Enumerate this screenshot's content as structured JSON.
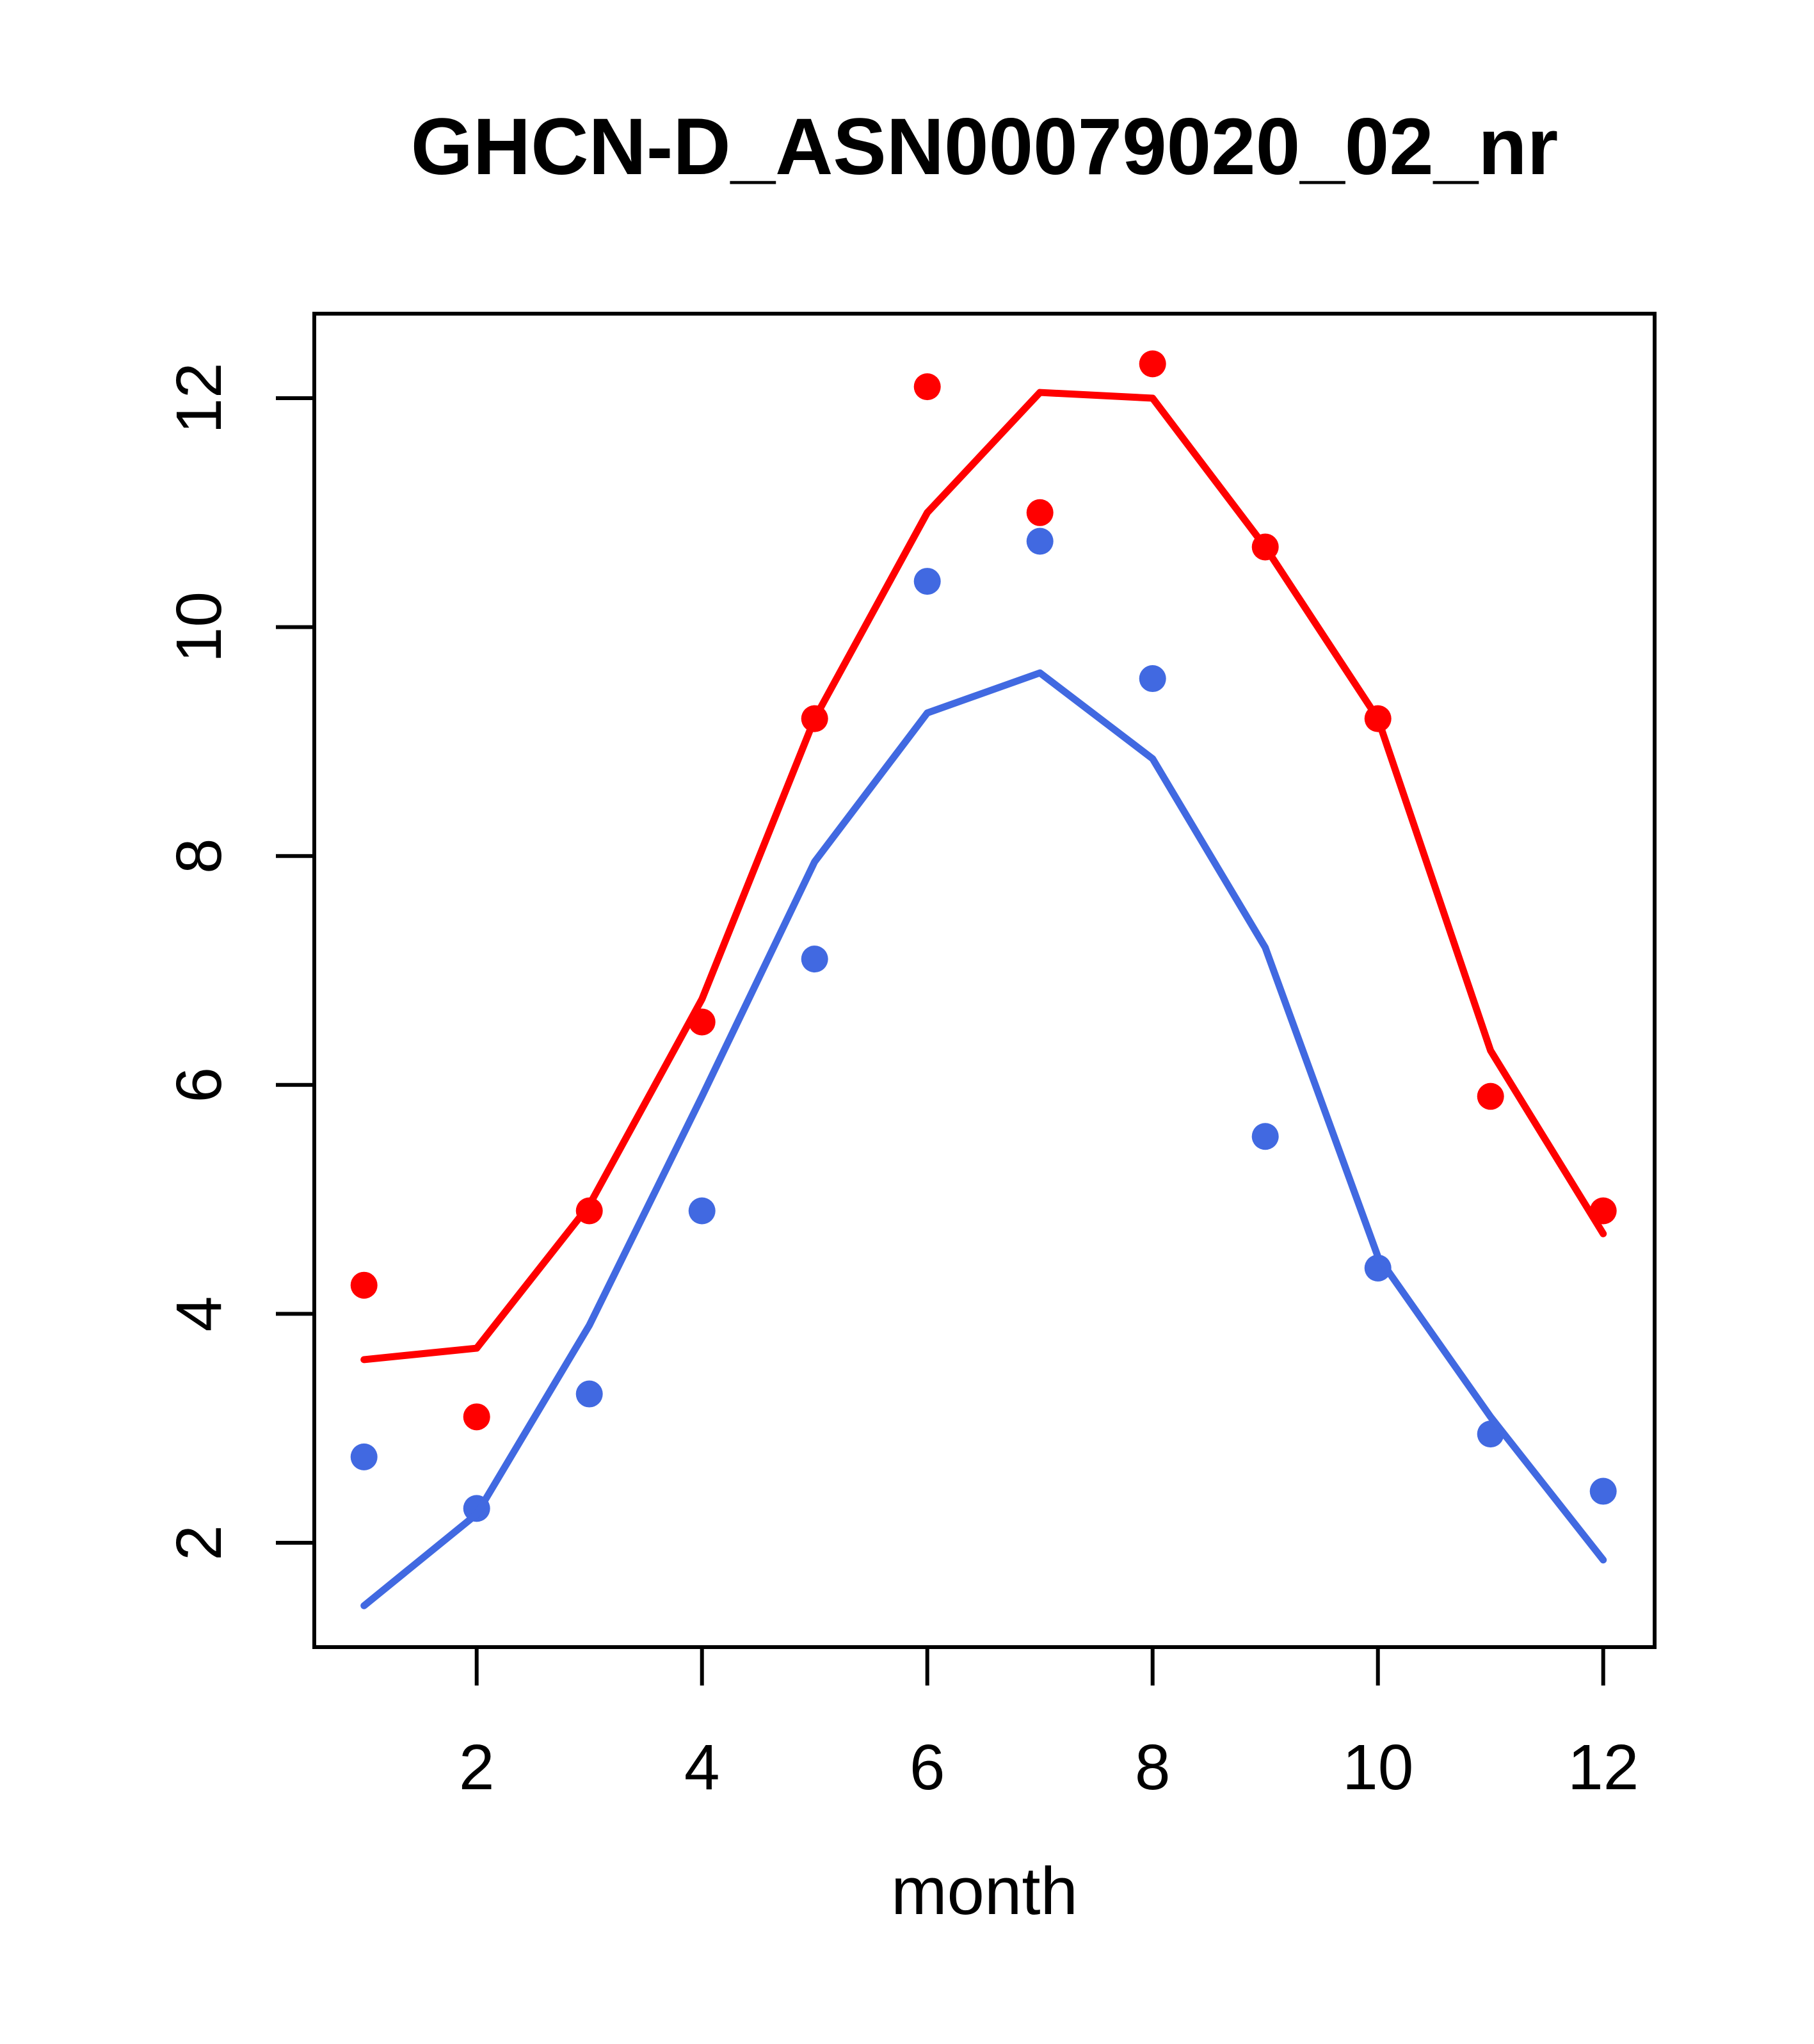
{
  "title": "GHCN-D_ASN00079020_02_nr",
  "x_axis": {
    "label": "month",
    "ticks": [
      2,
      4,
      6,
      8,
      10,
      12
    ]
  },
  "y_axis": {
    "label": "",
    "ticks": [
      2,
      4,
      6,
      8,
      10,
      12
    ]
  },
  "colors": {
    "red": "#FF0000",
    "blue": "#4169E1",
    "axis": "#000000",
    "background": "#FFFFFF"
  },
  "chart_data": {
    "type": "line",
    "title": "GHCN-D_ASN00079020_02_nr",
    "xlabel": "month",
    "ylabel": "",
    "x": [
      1,
      2,
      3,
      4,
      5,
      6,
      7,
      8,
      9,
      10,
      11,
      12
    ],
    "xlim": [
      0.56,
      12.46
    ],
    "ylim": [
      1.09,
      12.74
    ],
    "grid": false,
    "legend": "none",
    "series": [
      {
        "name": "red-points",
        "type": "scatter",
        "color_key": "red",
        "values": [
          4.25,
          3.1,
          4.9,
          6.55,
          9.2,
          12.1,
          11.0,
          12.3,
          10.7,
          9.2,
          5.9,
          4.9
        ]
      },
      {
        "name": "red-line",
        "type": "line",
        "color_key": "red",
        "values": [
          3.6,
          3.7,
          4.95,
          6.75,
          9.2,
          11.0,
          12.05,
          12.0,
          10.7,
          9.2,
          6.3,
          4.7
        ]
      },
      {
        "name": "blue-points",
        "type": "scatter",
        "color_key": "blue",
        "values": [
          2.75,
          2.3,
          3.3,
          4.9,
          7.1,
          10.4,
          10.75,
          9.55,
          5.55,
          4.4,
          2.95,
          2.45
        ]
      },
      {
        "name": "blue-line",
        "type": "line",
        "color_key": "blue",
        "values": [
          1.45,
          2.25,
          3.9,
          5.9,
          7.95,
          9.25,
          9.6,
          8.85,
          7.2,
          4.5,
          3.1,
          1.85
        ]
      }
    ]
  }
}
